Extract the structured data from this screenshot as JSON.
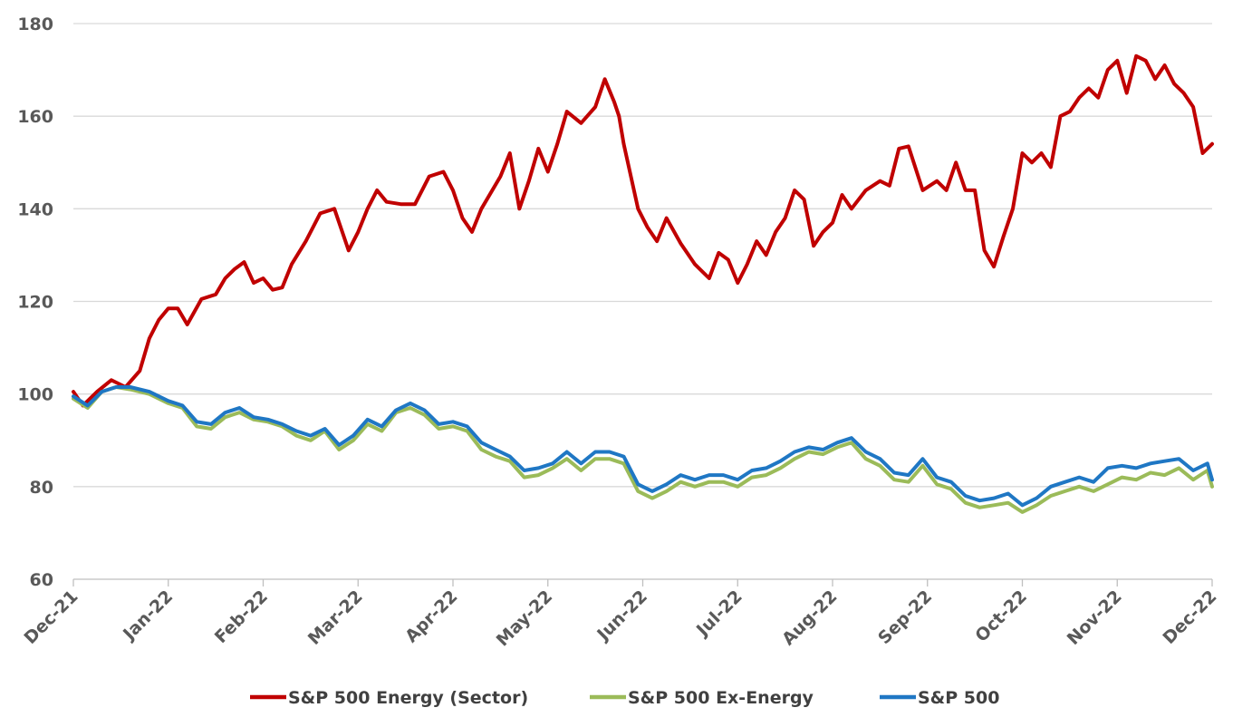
{
  "chart_data": {
    "type": "line",
    "title": "",
    "xlabel": "",
    "ylabel": "",
    "ylim": [
      60,
      180
    ],
    "yticks": [
      60,
      80,
      100,
      120,
      140,
      160,
      180
    ],
    "xticks": [
      "Dec-21",
      "Jan-22",
      "Feb-22",
      "Mar-22",
      "Apr-22",
      "May-22",
      "Jun-22",
      "Jul-22",
      "Aug-22",
      "Sep-22",
      "Oct-22",
      "Nov-22",
      "Dec-22"
    ],
    "x_unit": "months since Dec-21",
    "grid": true,
    "legend_position": "bottom",
    "series": [
      {
        "name": "S&P 500 Energy (Sector)",
        "color": "#c00000",
        "x": [
          0,
          0.1,
          0.25,
          0.4,
          0.55,
          0.7,
          0.8,
          0.9,
          1.0,
          1.1,
          1.2,
          1.35,
          1.5,
          1.6,
          1.7,
          1.8,
          1.9,
          2.0,
          2.1,
          2.2,
          2.3,
          2.45,
          2.6,
          2.75,
          2.9,
          3.0,
          3.1,
          3.2,
          3.3,
          3.45,
          3.6,
          3.75,
          3.9,
          4.0,
          4.1,
          4.2,
          4.3,
          4.5,
          4.6,
          4.7,
          4.8,
          4.9,
          5.0,
          5.1,
          5.2,
          5.35,
          5.5,
          5.6,
          5.7,
          5.75,
          5.8,
          5.95,
          6.05,
          6.15,
          6.25,
          6.4,
          6.55,
          6.7,
          6.8,
          6.9,
          7.0,
          7.1,
          7.2,
          7.3,
          7.4,
          7.5,
          7.6,
          7.7,
          7.8,
          7.9,
          8.0,
          8.1,
          8.2,
          8.35,
          8.5,
          8.6,
          8.7,
          8.8,
          8.95,
          9.1,
          9.2,
          9.3,
          9.4,
          9.5,
          9.6,
          9.7,
          9.8,
          9.9,
          10.0,
          10.1,
          10.2,
          10.3,
          10.4,
          10.5,
          10.6,
          10.7,
          10.8,
          10.9,
          11.0,
          11.1,
          11.2,
          11.3,
          11.4,
          11.5,
          11.6,
          11.7,
          11.8,
          11.9,
          12.0
        ],
        "values": [
          100.5,
          97.5,
          100.5,
          103,
          101.5,
          105,
          112,
          116,
          118.5,
          118.5,
          115,
          120.5,
          121.5,
          125,
          127,
          128.5,
          124,
          125,
          122.5,
          123,
          128,
          133,
          139,
          140,
          131,
          135,
          140,
          144,
          141.5,
          141,
          141,
          147,
          148,
          144,
          138,
          135,
          140,
          147,
          152,
          140,
          146,
          153,
          148,
          154,
          161,
          158.5,
          162,
          168,
          163,
          160,
          154,
          140,
          136,
          133,
          138,
          132.5,
          128,
          125,
          130.5,
          129,
          124,
          128,
          133,
          130,
          135,
          138,
          144,
          142,
          132,
          135,
          137,
          143,
          140,
          144,
          146,
          145,
          153,
          153.5,
          144,
          146,
          144,
          150,
          144,
          144,
          131,
          127.5,
          134,
          140,
          152,
          150,
          152,
          149,
          160,
          161,
          164,
          166,
          164,
          170,
          172,
          165,
          173,
          172,
          168,
          171,
          167,
          165,
          162,
          152,
          154
        ]
      },
      {
        "name": "S&P 500 Ex-Energy",
        "color": "#9bbb59",
        "x": [
          0,
          0.15,
          0.3,
          0.45,
          0.6,
          0.8,
          1.0,
          1.15,
          1.3,
          1.45,
          1.6,
          1.75,
          1.9,
          2.05,
          2.2,
          2.35,
          2.5,
          2.65,
          2.8,
          2.95,
          3.1,
          3.25,
          3.4,
          3.55,
          3.7,
          3.85,
          4.0,
          4.15,
          4.3,
          4.45,
          4.6,
          4.75,
          4.9,
          5.05,
          5.2,
          5.35,
          5.5,
          5.65,
          5.8,
          5.95,
          6.1,
          6.25,
          6.4,
          6.55,
          6.7,
          6.85,
          7.0,
          7.15,
          7.3,
          7.45,
          7.6,
          7.75,
          7.9,
          8.05,
          8.2,
          8.35,
          8.5,
          8.65,
          8.8,
          8.95,
          9.1,
          9.25,
          9.4,
          9.55,
          9.7,
          9.85,
          10.0,
          10.15,
          10.3,
          10.45,
          10.6,
          10.75,
          10.9,
          11.05,
          11.2,
          11.35,
          11.5,
          11.65,
          11.8,
          11.95,
          12.0
        ],
        "values": [
          99,
          97,
          100.5,
          101.5,
          101,
          100,
          98,
          97,
          93,
          92.5,
          95,
          96,
          94.5,
          94,
          93,
          91,
          90,
          92,
          88,
          90,
          93.5,
          92,
          96,
          97,
          95.5,
          92.5,
          93,
          92,
          88,
          86.5,
          85.5,
          82,
          82.5,
          84,
          86,
          83.5,
          86,
          86,
          85,
          79,
          77.5,
          79,
          81,
          80,
          81,
          81,
          80,
          82,
          82.5,
          84,
          86,
          87.5,
          87,
          88.5,
          89.5,
          86,
          84.5,
          81.5,
          81,
          84.5,
          80.5,
          79.5,
          76.5,
          75.5,
          76,
          76.5,
          74.5,
          76,
          78,
          79,
          80,
          79,
          80.5,
          82,
          81.5,
          83,
          82.5,
          84,
          81.5,
          83.5,
          80
        ]
      },
      {
        "name": "S&P 500",
        "color": "#1f77c4",
        "x": [
          0,
          0.15,
          0.3,
          0.45,
          0.6,
          0.8,
          1.0,
          1.15,
          1.3,
          1.45,
          1.6,
          1.75,
          1.9,
          2.05,
          2.2,
          2.35,
          2.5,
          2.65,
          2.8,
          2.95,
          3.1,
          3.25,
          3.4,
          3.55,
          3.7,
          3.85,
          4.0,
          4.15,
          4.3,
          4.45,
          4.6,
          4.75,
          4.9,
          5.05,
          5.2,
          5.35,
          5.5,
          5.65,
          5.8,
          5.95,
          6.1,
          6.25,
          6.4,
          6.55,
          6.7,
          6.85,
          7.0,
          7.15,
          7.3,
          7.45,
          7.6,
          7.75,
          7.9,
          8.05,
          8.2,
          8.35,
          8.5,
          8.65,
          8.8,
          8.95,
          9.1,
          9.25,
          9.4,
          9.55,
          9.7,
          9.85,
          10.0,
          10.15,
          10.3,
          10.45,
          10.6,
          10.75,
          10.9,
          11.05,
          11.2,
          11.35,
          11.5,
          11.65,
          11.8,
          11.95,
          12.0
        ],
        "values": [
          99.5,
          97.5,
          100.5,
          101.5,
          101.5,
          100.5,
          98.5,
          97.5,
          94,
          93.5,
          96,
          97,
          95,
          94.5,
          93.5,
          92,
          91,
          92.5,
          89,
          91,
          94.5,
          93,
          96.5,
          98,
          96.5,
          93.5,
          94,
          93,
          89.5,
          88,
          86.5,
          83.5,
          84,
          85,
          87.5,
          85,
          87.5,
          87.5,
          86.5,
          80.5,
          79,
          80.5,
          82.5,
          81.5,
          82.5,
          82.5,
          81.5,
          83.5,
          84,
          85.5,
          87.5,
          88.5,
          88,
          89.5,
          90.5,
          87.5,
          86,
          83,
          82.5,
          86,
          82,
          81,
          78,
          77,
          77.5,
          78.5,
          76,
          77.5,
          80,
          81,
          82,
          81,
          84,
          84.5,
          84,
          85,
          85.5,
          86,
          83.5,
          85,
          81.5
        ]
      }
    ]
  }
}
